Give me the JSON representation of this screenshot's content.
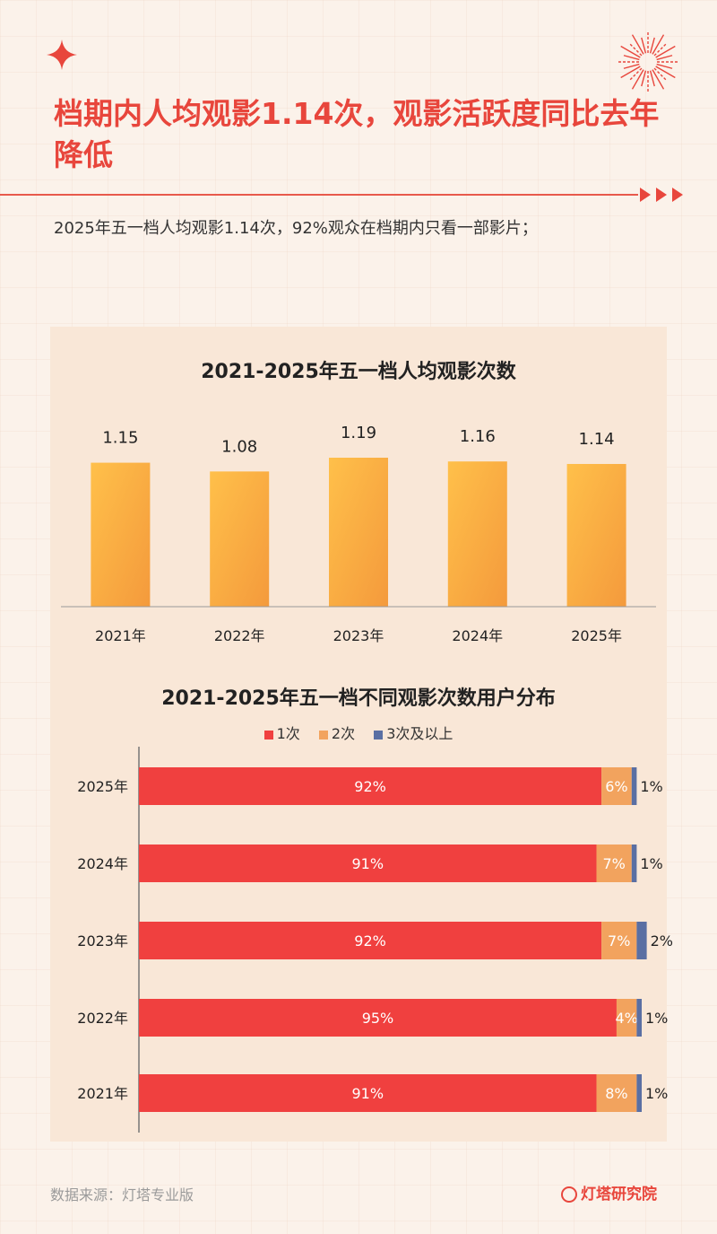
{
  "header": {
    "title": "档期内人均观影1.14次，观影活跃度同比去年降低",
    "subtitle": "2025年五一档人均观影1.14次，92%观众在档期内只看一部影片；"
  },
  "colors": {
    "accent": "#e8463c",
    "bar_top": "#ffc04a",
    "bar_bottom": "#f49a3c",
    "once": "#f0403f",
    "twice": "#f2a35e",
    "thrice": "#5a6fa3"
  },
  "chart_data": [
    {
      "type": "bar",
      "title": "2021-2025年五一档人均观影次数",
      "categories": [
        "2021年",
        "2022年",
        "2023年",
        "2024年",
        "2025年"
      ],
      "values": [
        1.15,
        1.08,
        1.19,
        1.16,
        1.14
      ],
      "value_labels": [
        "1.15",
        "1.08",
        "1.19",
        "1.16",
        "1.14"
      ],
      "grid": false
    },
    {
      "type": "bar",
      "orientation": "horizontal-stacked",
      "title": "2021-2025年五一档不同观影次数用户分布",
      "categories": [
        "2025年",
        "2024年",
        "2023年",
        "2022年",
        "2021年"
      ],
      "series": [
        {
          "name": "1次",
          "values": [
            92,
            91,
            92,
            95,
            91
          ],
          "labels": [
            "92%",
            "91%",
            "92%",
            "95%",
            "91%"
          ]
        },
        {
          "name": "2次",
          "values": [
            6,
            7,
            7,
            4,
            8
          ],
          "labels": [
            "6%",
            "7%",
            "7%",
            "4%",
            "8%"
          ]
        },
        {
          "name": "3次及以上",
          "values": [
            1,
            1,
            2,
            1,
            1
          ],
          "labels": [
            "1%",
            "1%",
            "2%",
            "1%",
            "1%"
          ]
        }
      ],
      "legend": "top"
    }
  ],
  "footer": {
    "source": "数据来源：灯塔专业版",
    "brand": "灯塔研究院"
  }
}
